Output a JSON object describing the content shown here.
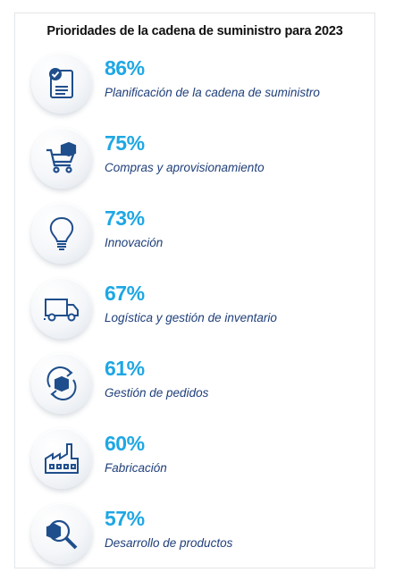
{
  "chart_data": {
    "type": "infographic",
    "title": "Prioridades de la cadena de suministro para 2023",
    "items": [
      {
        "value": 86,
        "display": "86%",
        "label": "Planificación de la cadena de suministro",
        "icon": "clipboard-check-icon"
      },
      {
        "value": 75,
        "display": "75%",
        "label": "Compras y aprovisionamiento",
        "icon": "shopping-cart-icon"
      },
      {
        "value": 73,
        "display": "73%",
        "label": "Innovación",
        "icon": "lightbulb-icon"
      },
      {
        "value": 67,
        "display": "67%",
        "label": "Logística y gestión de inventario",
        "icon": "truck-icon"
      },
      {
        "value": 61,
        "display": "61%",
        "label": "Gestión de pedidos",
        "icon": "cycle-box-icon"
      },
      {
        "value": 60,
        "display": "60%",
        "label": "Fabricación",
        "icon": "factory-icon"
      },
      {
        "value": 57,
        "display": "57%",
        "label": "Desarrollo de productos",
        "icon": "magnifier-box-icon"
      }
    ],
    "colors": {
      "value": "#1ea7e4",
      "label": "#1f3f7a",
      "icon": "#1f4e8c"
    }
  }
}
